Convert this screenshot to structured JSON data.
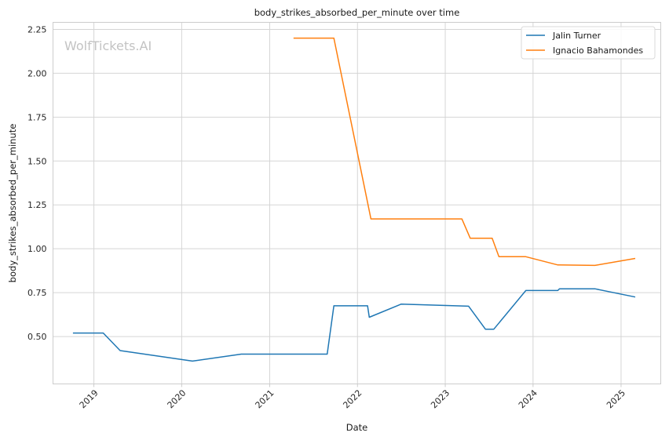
{
  "chart_data": {
    "type": "line",
    "title": "body_strikes_absorbed_per_minute over time",
    "xlabel": "Date",
    "ylabel": "body_strikes_absorbed_per_minute",
    "watermark": "WolfTickets.AI",
    "x_axis": "date",
    "xlim": [
      "2018-07-15",
      "2025-06-15"
    ],
    "ylim": [
      0.23,
      2.29
    ],
    "x_ticks": [
      {
        "date": "2019-01-01",
        "label": "2019"
      },
      {
        "date": "2020-01-01",
        "label": "2020"
      },
      {
        "date": "2021-01-01",
        "label": "2021"
      },
      {
        "date": "2022-01-01",
        "label": "2022"
      },
      {
        "date": "2023-01-01",
        "label": "2023"
      },
      {
        "date": "2024-01-01",
        "label": "2024"
      },
      {
        "date": "2025-01-01",
        "label": "2025"
      }
    ],
    "y_ticks": [
      {
        "value": 0.5,
        "label": "0.50"
      },
      {
        "value": 0.75,
        "label": "0.75"
      },
      {
        "value": 1.0,
        "label": "1.00"
      },
      {
        "value": 1.25,
        "label": "1.25"
      },
      {
        "value": 1.5,
        "label": "1.50"
      },
      {
        "value": 1.75,
        "label": "1.75"
      },
      {
        "value": 2.0,
        "label": "2.00"
      },
      {
        "value": 2.25,
        "label": "2.25"
      }
    ],
    "grid": true,
    "legend_position": "top-right",
    "series": [
      {
        "name": "Jalin Turner",
        "color": "#1f77b4",
        "points": [
          {
            "x": "2018-10-06",
            "y": 0.52
          },
          {
            "x": "2019-02-09",
            "y": 0.52
          },
          {
            "x": "2019-04-20",
            "y": 0.42
          },
          {
            "x": "2020-02-15",
            "y": 0.36
          },
          {
            "x": "2020-09-05",
            "y": 0.4
          },
          {
            "x": "2021-08-28",
            "y": 0.4
          },
          {
            "x": "2021-09-25",
            "y": 0.675
          },
          {
            "x": "2022-02-12",
            "y": 0.675
          },
          {
            "x": "2022-02-19",
            "y": 0.61
          },
          {
            "x": "2022-07-02",
            "y": 0.685
          },
          {
            "x": "2023-04-08",
            "y": 0.673
          },
          {
            "x": "2023-06-17",
            "y": 0.542
          },
          {
            "x": "2023-07-22",
            "y": 0.542
          },
          {
            "x": "2023-12-02",
            "y": 0.762
          },
          {
            "x": "2024-04-13",
            "y": 0.762
          },
          {
            "x": "2024-04-20",
            "y": 0.772
          },
          {
            "x": "2024-09-14",
            "y": 0.772
          },
          {
            "x": "2025-03-01",
            "y": 0.725
          }
        ]
      },
      {
        "name": "Ignacio Bahamondes",
        "color": "#ff7f0e",
        "points": [
          {
            "x": "2021-04-10",
            "y": 2.2
          },
          {
            "x": "2021-09-25",
            "y": 2.2
          },
          {
            "x": "2022-02-26",
            "y": 1.17
          },
          {
            "x": "2023-03-11",
            "y": 1.17
          },
          {
            "x": "2023-04-15",
            "y": 1.06
          },
          {
            "x": "2023-07-15",
            "y": 1.06
          },
          {
            "x": "2023-08-12",
            "y": 0.955
          },
          {
            "x": "2023-12-02",
            "y": 0.955
          },
          {
            "x": "2024-04-13",
            "y": 0.908
          },
          {
            "x": "2024-09-14",
            "y": 0.905
          },
          {
            "x": "2025-03-01",
            "y": 0.945
          }
        ]
      }
    ]
  }
}
